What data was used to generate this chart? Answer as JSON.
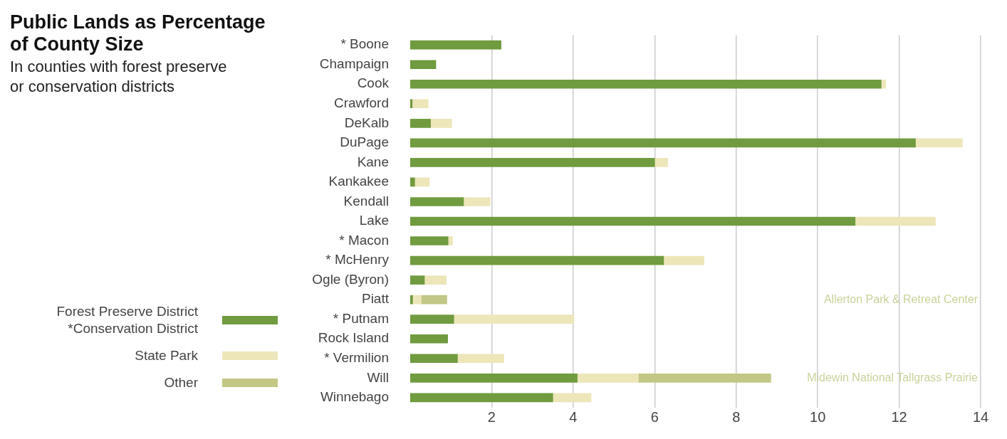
{
  "chart_data": {
    "type": "bar",
    "orientation": "horizontal",
    "stacked": true,
    "title": "Public Lands as Percentage of County Size",
    "subtitle": "In counties with forest preserve or conservation districts",
    "categories": [
      "* Boone",
      "Champaign",
      "Cook",
      "Crawford",
      "DeKalb",
      "DuPage",
      "Kane",
      "Kankakee",
      "Kendall",
      "Lake",
      "* Macon",
      "* McHenry",
      "Ogle (Byron)",
      "Piatt",
      "* Putnam",
      "Rock Island",
      "* Vermilion",
      "Will",
      "Winnebago"
    ],
    "series": [
      {
        "name": "Forest Preserve District\n*Conservation District",
        "color": "#709b3f",
        "values": [
          2.23,
          0.63,
          11.56,
          0.05,
          0.5,
          12.4,
          6.0,
          0.11,
          1.31,
          10.92,
          0.93,
          6.22,
          0.35,
          0.06,
          1.07,
          0.92,
          1.16,
          4.1,
          3.5
        ]
      },
      {
        "name": "State Park",
        "color": "#ede6b9",
        "values": [
          null,
          null,
          0.11,
          0.39,
          0.52,
          1.15,
          0.32,
          0.36,
          0.65,
          1.97,
          0.11,
          0.99,
          0.54,
          0.21,
          2.95,
          null,
          1.14,
          1.5,
          0.94
        ]
      },
      {
        "name": "Other",
        "color": "#c3c785",
        "values": [
          null,
          null,
          null,
          null,
          null,
          null,
          null,
          null,
          null,
          null,
          null,
          null,
          null,
          0.63,
          null,
          null,
          null,
          3.25,
          null
        ]
      }
    ],
    "xlim": [
      0,
      14
    ],
    "xticks": [
      2,
      4,
      6,
      8,
      10,
      12,
      14
    ],
    "grid": "x",
    "legend": "bottom left",
    "annotations": [
      "Allerton Park & Retreat Center",
      "Midewin National Tallgrass Prairie"
    ]
  }
}
